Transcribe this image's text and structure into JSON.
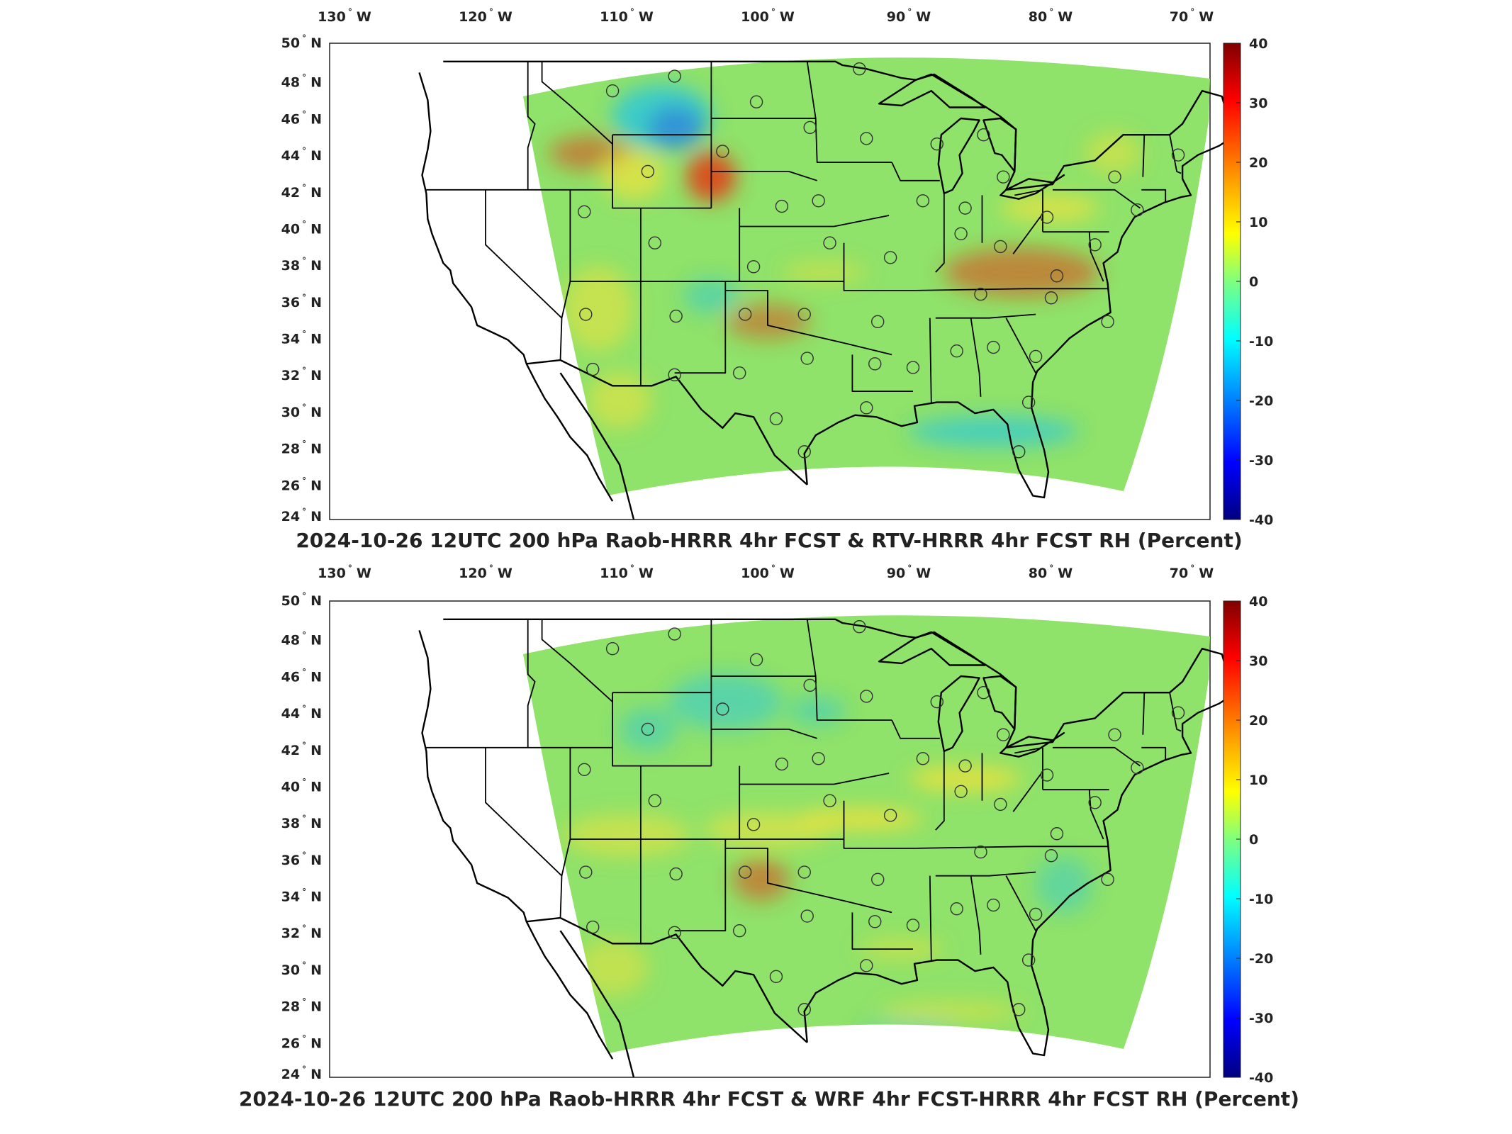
{
  "panels": [
    {
      "title": "2024-10-26 12UTC 200 hPa Raob-HRRR 4hr FCST & RTV-HRRR 4hr FCST RH (Percent)",
      "lon_ticks": [
        "130",
        "120",
        "110",
        "100",
        "90",
        "80",
        "70"
      ],
      "lat_ticks": [
        "50",
        "48",
        "46",
        "44",
        "42",
        "40",
        "38",
        "36",
        "34",
        "32",
        "30",
        "28",
        "26",
        "24"
      ],
      "lon_suffix": "W",
      "lat_suffix": "N",
      "colorbar_ticks": [
        "40",
        "30",
        "20",
        "10",
        "0",
        "-10",
        "-20",
        "-30",
        "-40"
      ]
    },
    {
      "title": "2024-10-26 12UTC 200 hPa Raob-HRRR 4hr FCST & WRF 4hr FCST-HRRR 4hr FCST RH (Percent)",
      "lon_ticks": [
        "130",
        "120",
        "110",
        "100",
        "90",
        "80",
        "70"
      ],
      "lat_ticks": [
        "50",
        "48",
        "46",
        "44",
        "42",
        "40",
        "38",
        "36",
        "34",
        "32",
        "30",
        "28",
        "26",
        "24"
      ],
      "lon_suffix": "W",
      "lat_suffix": "N",
      "colorbar_ticks": [
        "40",
        "30",
        "20",
        "10",
        "0",
        "-10",
        "-20",
        "-30",
        "-40"
      ]
    }
  ],
  "colors": {
    "field_base": "#8fe26a",
    "warm_anomaly": "#f2e23a",
    "hot_anomaly": "#e0401a",
    "cool_anomaly": "#2ec8d8",
    "cold_anomaly": "#2a6fe0",
    "boundary": "#000000"
  }
}
